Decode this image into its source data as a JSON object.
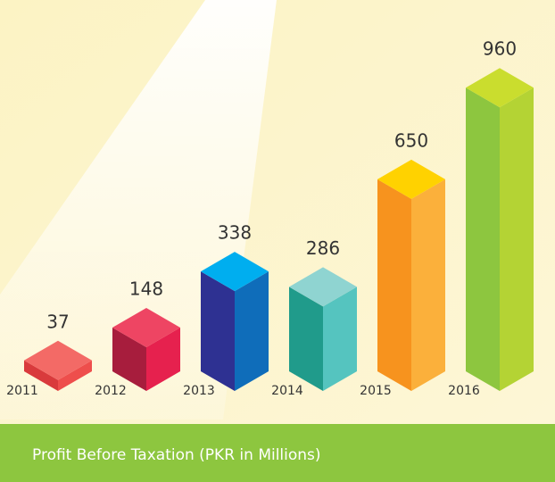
{
  "chart_data": {
    "type": "bar",
    "title": "Profit Before Taxation (PKR in Millions)",
    "categories": [
      "2011",
      "2012",
      "2013",
      "2014",
      "2015",
      "2016"
    ],
    "values": [
      37,
      148,
      338,
      286,
      650,
      960
    ],
    "face_colors": [
      [
        "#d93a3c",
        "#ee4e4c",
        "#f36a66"
      ],
      [
        "#a71d3d",
        "#e6214e",
        "#ee4563"
      ],
      [
        "#2e3192",
        "#0f6dba",
        "#00aeef"
      ],
      [
        "#209b8b",
        "#55c4bf",
        "#8fd4d1"
      ],
      [
        "#f7931e",
        "#fbb03b",
        "#ffd200"
      ],
      [
        "#8dc63f",
        "#b4d334",
        "#cadd2e"
      ]
    ]
  }
}
